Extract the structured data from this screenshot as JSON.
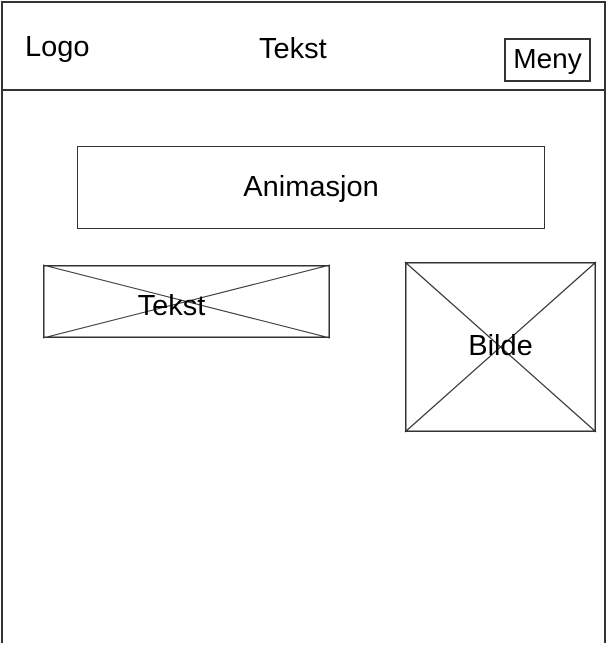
{
  "header": {
    "logo": "Logo",
    "text": "Tekst",
    "menu": "Meny"
  },
  "main": {
    "animation": "Animasjon",
    "text_block": "Tekst",
    "image_block": "Bilde"
  }
}
